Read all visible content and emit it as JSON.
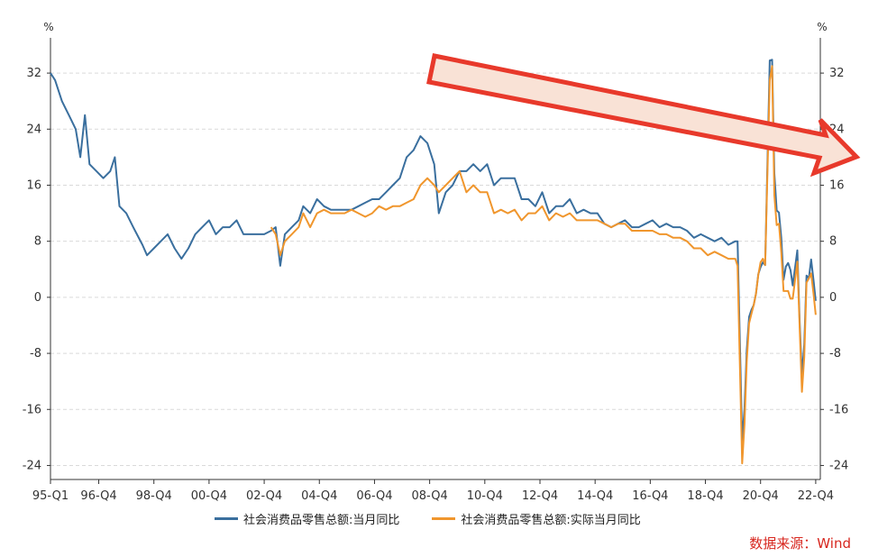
{
  "chart_data": {
    "type": "line",
    "y_unit_left": "%",
    "y_unit_right": "%",
    "ylim": [
      -26,
      36
    ],
    "y_ticks": [
      -24,
      -16,
      -8,
      0,
      8,
      16,
      24,
      32
    ],
    "x_start": "1995-01",
    "x_end": "2022-12",
    "x_tick_labels": [
      "95-Q1",
      "96-Q4",
      "98-Q4",
      "00-Q4",
      "02-Q4",
      "04-Q4",
      "06-Q4",
      "08-Q4",
      "10-Q4",
      "12-Q4",
      "14-Q4",
      "16-Q4",
      "18-Q4",
      "20-Q4",
      "22-Q4"
    ],
    "x_tick_dates": [
      "1995-01",
      "1996-10",
      "1998-10",
      "2000-10",
      "2002-10",
      "2004-10",
      "2006-10",
      "2008-10",
      "2010-10",
      "2012-10",
      "2014-10",
      "2016-10",
      "2018-10",
      "2020-10",
      "2022-10"
    ],
    "grid": true,
    "legend_position": "bottom",
    "annotation": "downward-trend-arrow",
    "series": [
      {
        "name": "社会消费品零售总额:当月同比",
        "color": "#3a6f9e",
        "points": [
          [
            "1995-01",
            32.0
          ],
          [
            "1995-03",
            31.0
          ],
          [
            "1995-06",
            28.0
          ],
          [
            "1995-09",
            26.0
          ],
          [
            "1995-12",
            24.0
          ],
          [
            "1996-02",
            20.0
          ],
          [
            "1996-04",
            26.0
          ],
          [
            "1996-06",
            19.0
          ],
          [
            "1996-09",
            18.0
          ],
          [
            "1996-12",
            17.0
          ],
          [
            "1997-03",
            18.0
          ],
          [
            "1997-05",
            20.0
          ],
          [
            "1997-07",
            13.0
          ],
          [
            "1997-10",
            12.0
          ],
          [
            "1998-01",
            10.0
          ],
          [
            "1998-05",
            7.5
          ],
          [
            "1998-07",
            6.0
          ],
          [
            "1998-10",
            7.0
          ],
          [
            "1999-01",
            8.0
          ],
          [
            "1999-04",
            9.0
          ],
          [
            "1999-07",
            7.0
          ],
          [
            "1999-10",
            5.5
          ],
          [
            "2000-01",
            7.0
          ],
          [
            "2000-04",
            9.0
          ],
          [
            "2000-07",
            10.0
          ],
          [
            "2000-10",
            11.0
          ],
          [
            "2001-01",
            9.0
          ],
          [
            "2001-04",
            10.0
          ],
          [
            "2001-07",
            10.0
          ],
          [
            "2001-10",
            11.0
          ],
          [
            "2002-01",
            9.0
          ],
          [
            "2002-04",
            9.0
          ],
          [
            "2002-07",
            9.0
          ],
          [
            "2002-10",
            9.0
          ],
          [
            "2003-01",
            9.5
          ],
          [
            "2003-03",
            10.0
          ],
          [
            "2003-05",
            4.5
          ],
          [
            "2003-07",
            9.0
          ],
          [
            "2003-10",
            10.0
          ],
          [
            "2004-01",
            11.0
          ],
          [
            "2004-03",
            13.0
          ],
          [
            "2004-06",
            12.0
          ],
          [
            "2004-09",
            14.0
          ],
          [
            "2004-12",
            13.0
          ],
          [
            "2005-03",
            12.5
          ],
          [
            "2005-06",
            12.5
          ],
          [
            "2005-09",
            12.5
          ],
          [
            "2005-12",
            12.5
          ],
          [
            "2006-03",
            13.0
          ],
          [
            "2006-06",
            13.5
          ],
          [
            "2006-09",
            14.0
          ],
          [
            "2006-12",
            14.0
          ],
          [
            "2007-03",
            15.0
          ],
          [
            "2007-06",
            16.0
          ],
          [
            "2007-09",
            17.0
          ],
          [
            "2007-12",
            20.0
          ],
          [
            "2008-03",
            21.0
          ],
          [
            "2008-06",
            23.0
          ],
          [
            "2008-09",
            22.0
          ],
          [
            "2008-12",
            19.0
          ],
          [
            "2009-02",
            12.0
          ],
          [
            "2009-05",
            15.0
          ],
          [
            "2009-08",
            16.0
          ],
          [
            "2009-11",
            18.0
          ],
          [
            "2010-02",
            18.0
          ],
          [
            "2010-05",
            19.0
          ],
          [
            "2010-08",
            18.0
          ],
          [
            "2010-11",
            19.0
          ],
          [
            "2011-02",
            16.0
          ],
          [
            "2011-05",
            17.0
          ],
          [
            "2011-08",
            17.0
          ],
          [
            "2011-11",
            17.0
          ],
          [
            "2012-02",
            14.0
          ],
          [
            "2012-05",
            14.0
          ],
          [
            "2012-08",
            13.0
          ],
          [
            "2012-11",
            15.0
          ],
          [
            "2013-02",
            12.0
          ],
          [
            "2013-05",
            13.0
          ],
          [
            "2013-08",
            13.0
          ],
          [
            "2013-11",
            14.0
          ],
          [
            "2014-02",
            12.0
          ],
          [
            "2014-05",
            12.5
          ],
          [
            "2014-08",
            12.0
          ],
          [
            "2014-11",
            12.0
          ],
          [
            "2015-02",
            10.5
          ],
          [
            "2015-05",
            10.0
          ],
          [
            "2015-08",
            10.5
          ],
          [
            "2015-11",
            11.0
          ],
          [
            "2016-02",
            10.0
          ],
          [
            "2016-05",
            10.0
          ],
          [
            "2016-08",
            10.5
          ],
          [
            "2016-11",
            11.0
          ],
          [
            "2017-02",
            10.0
          ],
          [
            "2017-05",
            10.5
          ],
          [
            "2017-08",
            10.0
          ],
          [
            "2017-11",
            10.0
          ],
          [
            "2018-02",
            9.5
          ],
          [
            "2018-05",
            8.5
          ],
          [
            "2018-08",
            9.0
          ],
          [
            "2018-11",
            8.5
          ],
          [
            "2019-02",
            8.0
          ],
          [
            "2019-05",
            8.5
          ],
          [
            "2019-08",
            7.5
          ],
          [
            "2019-11",
            8.0
          ],
          [
            "2019-12",
            8.0
          ],
          [
            "2020-02",
            -20.5
          ],
          [
            "2020-03",
            -15.8
          ],
          [
            "2020-04",
            -7.5
          ],
          [
            "2020-05",
            -2.8
          ],
          [
            "2020-06",
            -1.8
          ],
          [
            "2020-07",
            -1.1
          ],
          [
            "2020-08",
            0.5
          ],
          [
            "2020-09",
            3.3
          ],
          [
            "2020-10",
            4.3
          ],
          [
            "2020-11",
            5.0
          ],
          [
            "2020-12",
            4.6
          ],
          [
            "2021-02",
            33.8
          ],
          [
            "2021-03",
            33.9
          ],
          [
            "2021-04",
            17.7
          ],
          [
            "2021-05",
            12.4
          ],
          [
            "2021-06",
            12.1
          ],
          [
            "2021-07",
            8.5
          ],
          [
            "2021-08",
            2.5
          ],
          [
            "2021-09",
            4.4
          ],
          [
            "2021-10",
            4.9
          ],
          [
            "2021-11",
            3.9
          ],
          [
            "2021-12",
            1.7
          ],
          [
            "2022-02",
            6.7
          ],
          [
            "2022-03",
            -3.5
          ],
          [
            "2022-04",
            -11.1
          ],
          [
            "2022-05",
            -6.7
          ],
          [
            "2022-06",
            3.1
          ],
          [
            "2022-07",
            2.7
          ],
          [
            "2022-08",
            5.4
          ],
          [
            "2022-09",
            2.5
          ],
          [
            "2022-10",
            -0.5
          ]
        ]
      },
      {
        "name": "社会消费品零售总额:实际当月同比",
        "color": "#f0962d",
        "points": [
          [
            "2003-01",
            10.0
          ],
          [
            "2003-03",
            9.0
          ],
          [
            "2003-05",
            6.0
          ],
          [
            "2003-07",
            8.0
          ],
          [
            "2003-10",
            9.0
          ],
          [
            "2004-01",
            10.0
          ],
          [
            "2004-03",
            12.0
          ],
          [
            "2004-06",
            10.0
          ],
          [
            "2004-09",
            12.0
          ],
          [
            "2004-12",
            12.5
          ],
          [
            "2005-03",
            12.0
          ],
          [
            "2005-06",
            12.0
          ],
          [
            "2005-09",
            12.0
          ],
          [
            "2005-12",
            12.5
          ],
          [
            "2006-03",
            12.0
          ],
          [
            "2006-06",
            11.5
          ],
          [
            "2006-09",
            12.0
          ],
          [
            "2006-12",
            13.0
          ],
          [
            "2007-03",
            12.5
          ],
          [
            "2007-06",
            13.0
          ],
          [
            "2007-09",
            13.0
          ],
          [
            "2007-12",
            13.5
          ],
          [
            "2008-03",
            14.0
          ],
          [
            "2008-06",
            16.0
          ],
          [
            "2008-09",
            17.0
          ],
          [
            "2008-12",
            16.0
          ],
          [
            "2009-02",
            15.0
          ],
          [
            "2009-05",
            16.0
          ],
          [
            "2009-08",
            17.0
          ],
          [
            "2009-11",
            18.0
          ],
          [
            "2010-02",
            15.0
          ],
          [
            "2010-05",
            16.0
          ],
          [
            "2010-08",
            15.0
          ],
          [
            "2010-11",
            15.0
          ],
          [
            "2011-02",
            12.0
          ],
          [
            "2011-05",
            12.5
          ],
          [
            "2011-08",
            12.0
          ],
          [
            "2011-11",
            12.5
          ],
          [
            "2012-02",
            11.0
          ],
          [
            "2012-05",
            12.0
          ],
          [
            "2012-08",
            12.0
          ],
          [
            "2012-11",
            13.0
          ],
          [
            "2013-02",
            11.0
          ],
          [
            "2013-05",
            12.0
          ],
          [
            "2013-08",
            11.5
          ],
          [
            "2013-11",
            12.0
          ],
          [
            "2014-02",
            11.0
          ],
          [
            "2014-05",
            11.0
          ],
          [
            "2014-08",
            11.0
          ],
          [
            "2014-11",
            11.0
          ],
          [
            "2015-02",
            10.5
          ],
          [
            "2015-05",
            10.0
          ],
          [
            "2015-08",
            10.5
          ],
          [
            "2015-11",
            10.5
          ],
          [
            "2016-02",
            9.5
          ],
          [
            "2016-05",
            9.5
          ],
          [
            "2016-08",
            9.5
          ],
          [
            "2016-11",
            9.5
          ],
          [
            "2017-02",
            9.0
          ],
          [
            "2017-05",
            9.0
          ],
          [
            "2017-08",
            8.5
          ],
          [
            "2017-11",
            8.5
          ],
          [
            "2018-02",
            8.0
          ],
          [
            "2018-05",
            7.0
          ],
          [
            "2018-08",
            7.0
          ],
          [
            "2018-11",
            6.0
          ],
          [
            "2019-02",
            6.5
          ],
          [
            "2019-05",
            6.0
          ],
          [
            "2019-08",
            5.5
          ],
          [
            "2019-11",
            5.5
          ],
          [
            "2019-12",
            4.5
          ],
          [
            "2020-02",
            -23.7
          ],
          [
            "2020-03",
            -18.1
          ],
          [
            "2020-04",
            -9.1
          ],
          [
            "2020-05",
            -3.7
          ],
          [
            "2020-06",
            -2.4
          ],
          [
            "2020-07",
            -1.1
          ],
          [
            "2020-08",
            0.5
          ],
          [
            "2020-09",
            3.2
          ],
          [
            "2020-10",
            5.0
          ],
          [
            "2020-11",
            5.5
          ],
          [
            "2020-12",
            4.6
          ],
          [
            "2021-02",
            31.0
          ],
          [
            "2021-03",
            33.0
          ],
          [
            "2021-04",
            14.6
          ],
          [
            "2021-05",
            10.3
          ],
          [
            "2021-06",
            10.5
          ],
          [
            "2021-07",
            6.4
          ],
          [
            "2021-08",
            0.9
          ],
          [
            "2021-09",
            0.9
          ],
          [
            "2021-10",
            0.9
          ],
          [
            "2021-11",
            -0.2
          ],
          [
            "2021-12",
            -0.2
          ],
          [
            "2022-02",
            5.1
          ],
          [
            "2022-03",
            -4.4
          ],
          [
            "2022-04",
            -13.5
          ],
          [
            "2022-05",
            -8.5
          ],
          [
            "2022-06",
            2.1
          ],
          [
            "2022-07",
            2.7
          ],
          [
            "2022-08",
            3.4
          ],
          [
            "2022-09",
            0.6
          ],
          [
            "2022-10",
            -2.5
          ]
        ]
      }
    ]
  },
  "legend": {
    "series1_label": "社会消费品零售总额:当月同比",
    "series2_label": "社会消费品零售总额:实际当月同比"
  },
  "source_text": "数据来源：Wind",
  "colors": {
    "series1": "#3a6f9e",
    "series2": "#f0962d",
    "arrow_stroke": "#e8392b",
    "arrow_fill": "#f9e2d6",
    "source": "#d7261e"
  }
}
